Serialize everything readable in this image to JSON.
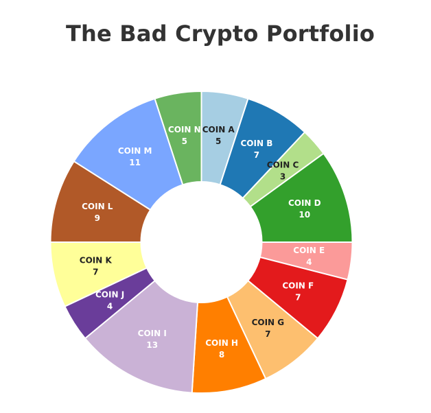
{
  "chart_data": {
    "type": "pie",
    "title": "The Bad Crypto Portfolio",
    "hole": true,
    "start": "top",
    "direction": "clockwise",
    "sort": false,
    "slices": [
      {
        "label": "COIN A",
        "value": 5,
        "color": "#a6cee3",
        "text_color": "#222222"
      },
      {
        "label": "COIN B",
        "value": 7,
        "color": "#1f78b4",
        "text_color": "#ffffff"
      },
      {
        "label": "COIN C",
        "value": 3,
        "color": "#b2df8a",
        "text_color": "#222222"
      },
      {
        "label": "COIN D",
        "value": 10,
        "color": "#33a02c",
        "text_color": "#ffffff"
      },
      {
        "label": "COIN E",
        "value": 4,
        "color": "#fb9a99",
        "text_color": "#ffffff"
      },
      {
        "label": "COIN F",
        "value": 7,
        "color": "#e31a1c",
        "text_color": "#ffffff"
      },
      {
        "label": "COIN G",
        "value": 7,
        "color": "#fdbf6f",
        "text_color": "#222222"
      },
      {
        "label": "COIN H",
        "value": 8,
        "color": "#ff7f00",
        "text_color": "#ffffff"
      },
      {
        "label": "COIN I",
        "value": 13,
        "color": "#cab2d6",
        "text_color": "#ffffff"
      },
      {
        "label": "COIN J",
        "value": 4,
        "color": "#6a3d9a",
        "text_color": "#ffffff"
      },
      {
        "label": "COIN K",
        "value": 7,
        "color": "#ffff99",
        "text_color": "#222222"
      },
      {
        "label": "COIN L",
        "value": 9,
        "color": "#b15928",
        "text_color": "#ffffff"
      },
      {
        "label": "COIN M",
        "value": 11,
        "color": "#7aa6ff",
        "text_color": "#ffffff"
      },
      {
        "label": "COIN N",
        "value": 5,
        "color": "#6ab45f",
        "text_color": "#ffffff"
      }
    ]
  }
}
